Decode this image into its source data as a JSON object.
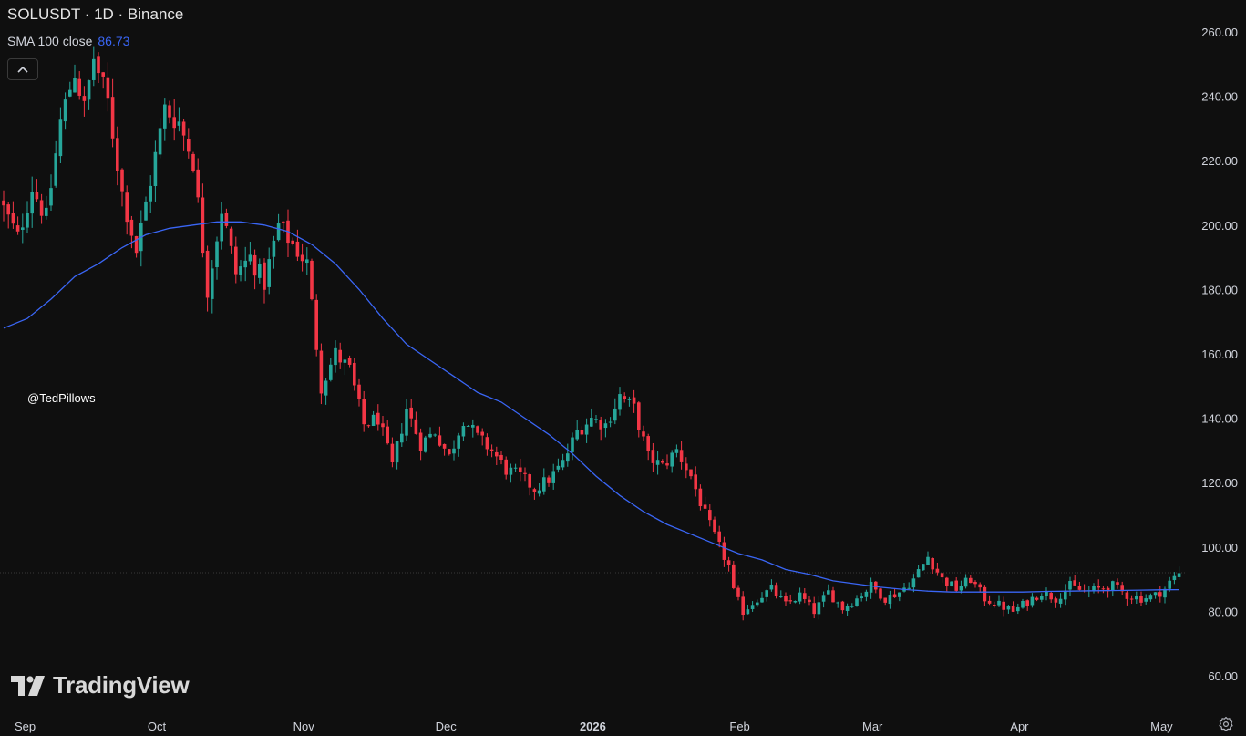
{
  "header": {
    "title": "SOLUSDT · 1D · Binance",
    "sma_label": "SMA 100 close",
    "sma_value": "86.73"
  },
  "watermark": "@TedPillows",
  "brand": "TradingView",
  "icons": {
    "collapse": "chevron-up-icon",
    "brand_logo": "tradingview-logo-icon",
    "settings": "settings-icon"
  },
  "colors": {
    "background": "#0f0f0f",
    "up": "#26a69a",
    "down": "#f23645",
    "sma": "#3a66f5",
    "axis_text": "#d1d4dc",
    "sma_value": "#3a66f5"
  },
  "chart_data": {
    "type": "candlestick",
    "title": "SOLUSDT · 1D · Binance",
    "ylim": [
      55,
      267
    ],
    "y_ticks": [
      {
        "value": 260,
        "label": "260.00"
      },
      {
        "value": 240,
        "label": "240.00"
      },
      {
        "value": 220,
        "label": "220.00"
      },
      {
        "value": 200,
        "label": "200.00"
      },
      {
        "value": 180,
        "label": "180.00"
      },
      {
        "value": 160,
        "label": "160.00"
      },
      {
        "value": 140,
        "label": "140.00"
      },
      {
        "value": 120,
        "label": "120.00"
      },
      {
        "value": 100,
        "label": "100.00"
      },
      {
        "value": 80,
        "label": "80.00"
      },
      {
        "value": 60,
        "label": "60.00"
      }
    ],
    "x_ticks": [
      {
        "label": "Sep",
        "bold": false,
        "bar": 0
      },
      {
        "label": "Oct",
        "bold": false,
        "bar": 30
      },
      {
        "label": "Nov",
        "bold": false,
        "bar": 61
      },
      {
        "label": "Dec",
        "bold": false,
        "bar": 91
      },
      {
        "label": "2026",
        "bold": true,
        "bar": 122
      },
      {
        "label": "Feb",
        "bold": false,
        "bar": 153
      },
      {
        "label": "Mar",
        "bold": false,
        "bar": 181
      },
      {
        "label": "Apr",
        "bold": false,
        "bar": 212
      },
      {
        "label": "May",
        "bold": false,
        "bar": 242
      }
    ],
    "close_points": [
      [
        0,
        205
      ],
      [
        3,
        196
      ],
      [
        6,
        212
      ],
      [
        9,
        202
      ],
      [
        12,
        232
      ],
      [
        15,
        248
      ],
      [
        17,
        236
      ],
      [
        19,
        252
      ],
      [
        22,
        238
      ],
      [
        25,
        210
      ],
      [
        28,
        192
      ],
      [
        31,
        214
      ],
      [
        34,
        236
      ],
      [
        37,
        232
      ],
      [
        40,
        220
      ],
      [
        43,
        180
      ],
      [
        46,
        205
      ],
      [
        49,
        185
      ],
      [
        52,
        190
      ],
      [
        55,
        182
      ],
      [
        58,
        200
      ],
      [
        61,
        194
      ],
      [
        64,
        188
      ],
      [
        67,
        150
      ],
      [
        70,
        160
      ],
      [
        73,
        155
      ],
      [
        76,
        138
      ],
      [
        79,
        140
      ],
      [
        82,
        125
      ],
      [
        85,
        143
      ],
      [
        88,
        132
      ],
      [
        91,
        136
      ],
      [
        94,
        128
      ],
      [
        97,
        140
      ],
      [
        100,
        134
      ],
      [
        103,
        130
      ],
      [
        106,
        124
      ],
      [
        109,
        122
      ],
      [
        112,
        118
      ],
      [
        115,
        121
      ],
      [
        118,
        126
      ],
      [
        121,
        136
      ],
      [
        124,
        140
      ],
      [
        127,
        138
      ],
      [
        130,
        147
      ],
      [
        133,
        143
      ],
      [
        136,
        128
      ],
      [
        139,
        125
      ],
      [
        142,
        130
      ],
      [
        145,
        122
      ],
      [
        148,
        110
      ],
      [
        151,
        100
      ],
      [
        153,
        94
      ],
      [
        154,
        86
      ],
      [
        156,
        80
      ],
      [
        159,
        84
      ],
      [
        162,
        87
      ],
      [
        165,
        82
      ],
      [
        168,
        85
      ],
      [
        171,
        80
      ],
      [
        174,
        86
      ],
      [
        177,
        81
      ],
      [
        180,
        84
      ],
      [
        183,
        88
      ],
      [
        186,
        84
      ],
      [
        189,
        86
      ],
      [
        192,
        90
      ],
      [
        195,
        97
      ],
      [
        198,
        90
      ],
      [
        201,
        87
      ],
      [
        204,
        90
      ],
      [
        207,
        84
      ],
      [
        210,
        82
      ],
      [
        213,
        80
      ],
      [
        216,
        83
      ],
      [
        219,
        86
      ],
      [
        222,
        84
      ],
      [
        225,
        88
      ],
      [
        228,
        86
      ],
      [
        231,
        87
      ],
      [
        234,
        88
      ],
      [
        237,
        85
      ],
      [
        240,
        84
      ],
      [
        243,
        85
      ],
      [
        245,
        87
      ],
      [
        246,
        89
      ],
      [
        248,
        92
      ]
    ],
    "sma_points": [
      [
        0,
        168
      ],
      [
        5,
        171
      ],
      [
        10,
        177
      ],
      [
        15,
        184
      ],
      [
        20,
        188
      ],
      [
        25,
        193
      ],
      [
        30,
        197
      ],
      [
        35,
        199
      ],
      [
        40,
        200
      ],
      [
        45,
        201
      ],
      [
        50,
        201
      ],
      [
        55,
        200
      ],
      [
        60,
        198
      ],
      [
        65,
        194
      ],
      [
        70,
        188
      ],
      [
        75,
        180
      ],
      [
        80,
        171
      ],
      [
        85,
        163
      ],
      [
        90,
        158
      ],
      [
        95,
        153
      ],
      [
        100,
        148
      ],
      [
        105,
        145
      ],
      [
        110,
        140
      ],
      [
        115,
        135
      ],
      [
        120,
        129
      ],
      [
        125,
        122
      ],
      [
        130,
        116
      ],
      [
        135,
        111
      ],
      [
        140,
        107
      ],
      [
        145,
        104
      ],
      [
        150,
        101
      ],
      [
        155,
        98
      ],
      [
        160,
        96
      ],
      [
        165,
        93
      ],
      [
        170,
        91.5
      ],
      [
        175,
        89.5
      ],
      [
        180,
        88.5
      ],
      [
        185,
        87.5
      ],
      [
        190,
        86.8
      ],
      [
        195,
        86.3
      ],
      [
        200,
        86
      ],
      [
        205,
        86
      ],
      [
        210,
        86
      ],
      [
        215,
        86
      ],
      [
        220,
        86.2
      ],
      [
        225,
        86.3
      ],
      [
        230,
        86.4
      ],
      [
        235,
        86.5
      ],
      [
        240,
        86.6
      ],
      [
        245,
        86.7
      ],
      [
        248,
        86.73
      ]
    ],
    "last_price_line": 92,
    "candle_count": 249,
    "legend": "top-left",
    "grid": false
  }
}
